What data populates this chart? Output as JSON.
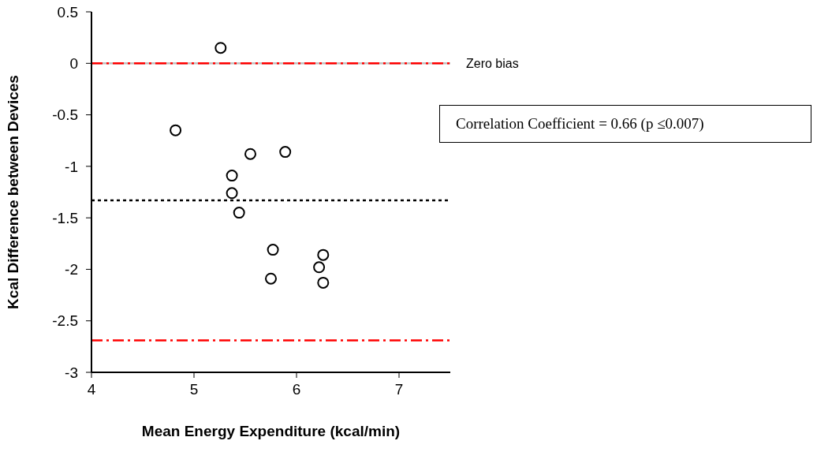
{
  "chart_data": {
    "type": "scatter",
    "xlabel": "Mean Energy Expenditure (kcal/min)",
    "ylabel": "Kcal Difference between Devices",
    "x": [
      5.26,
      4.82,
      5.55,
      5.89,
      5.37,
      5.37,
      5.44,
      5.77,
      5.75,
      6.26,
      6.22,
      6.26
    ],
    "series": [
      {
        "color": "#000000",
        "values": [
          0.15,
          -0.65,
          -0.88,
          -0.86,
          -1.09,
          -1.26,
          -1.45,
          -1.81,
          -2.09,
          -1.86,
          -1.98,
          -2.13
        ]
      }
    ],
    "xlim": [
      4,
      7.5
    ],
    "xticks": [
      4,
      5,
      6,
      7
    ],
    "ylim": [
      -3,
      0.5
    ],
    "yticks": [
      0.5,
      0,
      -0.5,
      -1,
      -1.5,
      -2,
      -2.5,
      -3
    ],
    "marker": "circle",
    "grid": false,
    "legend": false,
    "ref_lines": [
      {
        "axis": "y",
        "value": 0,
        "label": "Zero bias",
        "color": "#c0c0c0",
        "line_style": "solid"
      },
      {
        "axis": "y",
        "value": 0,
        "color": "#ff0000",
        "line_style": "dashed"
      },
      {
        "axis": "y",
        "value": -1.33,
        "color": "#000000",
        "line_style": "dotted"
      },
      {
        "axis": "y",
        "value": -2.69,
        "color": "#ff0000",
        "line_style": "dashed"
      }
    ],
    "annotations": [
      "Correlation Coefficient = 0.66 (p ≤0.007)"
    ]
  }
}
